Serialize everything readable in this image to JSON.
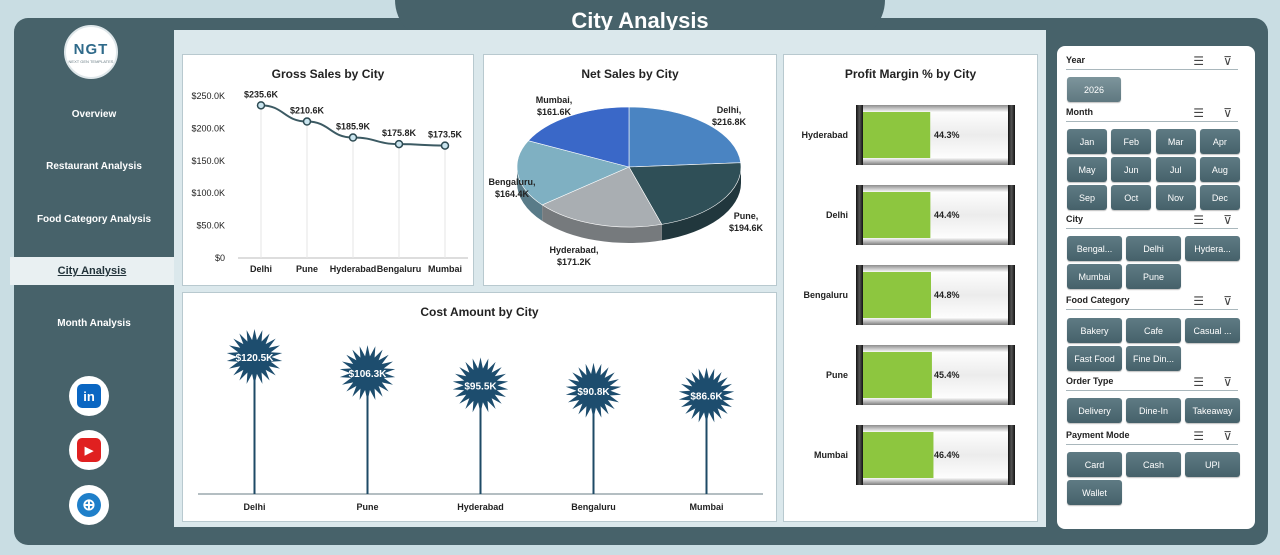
{
  "header": {
    "title": "City Analysis"
  },
  "logo": {
    "text": "NGT",
    "subtext": "NEXT GEN TEMPLATES"
  },
  "nav": {
    "items": [
      {
        "label": "Overview"
      },
      {
        "label": "Restaurant Analysis"
      },
      {
        "label": "Food Category Analysis"
      },
      {
        "label": "City Analysis",
        "active": true
      },
      {
        "label": "Month Analysis"
      }
    ]
  },
  "social": [
    {
      "icon": "linkedin-icon",
      "glyph": "in",
      "color": "#0a66c2"
    },
    {
      "icon": "youtube-icon",
      "glyph": "▶",
      "color": "#e02020"
    },
    {
      "icon": "globe-icon",
      "glyph": "⊕",
      "color": "#1f7fc9"
    }
  ],
  "gross_sales": {
    "title": "Gross Sales by City",
    "y_ticks": [
      "$250.0K",
      "$200.0K",
      "$150.0K",
      "$100.0K",
      "$50.0K",
      "$0"
    ],
    "categories": [
      "Delhi",
      "Pune",
      "Hyderabad",
      "Bengaluru",
      "Mumbai"
    ],
    "labels": [
      "$235.6K",
      "$210.6K",
      "$185.9K",
      "$175.8K",
      "$173.5K"
    ],
    "values": [
      235.6,
      210.6,
      185.9,
      175.8,
      173.5
    ],
    "ylim": [
      0,
      250
    ]
  },
  "net_sales": {
    "title": "Net Sales by City",
    "slices": [
      {
        "name": "Delhi,",
        "value_label": "$216.8K",
        "value": 216.8,
        "color": "#4a84c2"
      },
      {
        "name": "Pune,",
        "value_label": "$194.6K",
        "value": 194.6,
        "color": "#2f4f57"
      },
      {
        "name": "Hyderabad,",
        "value_label": "$171.2K",
        "value": 171.2,
        "color": "#a9aeb2"
      },
      {
        "name": "Bengaluru,",
        "value_label": "$164.4K",
        "value": 164.4,
        "color": "#7fb0c2"
      },
      {
        "name": "Mumbai,",
        "value_label": "$161.6K",
        "value": 161.6,
        "color": "#3a68c8"
      }
    ]
  },
  "cost_amount": {
    "title": "Cost Amount by City",
    "categories": [
      "Delhi",
      "Pune",
      "Hyderabad",
      "Bengaluru",
      "Mumbai"
    ],
    "labels": [
      "$120.5K",
      "$106.3K",
      "$95.5K",
      "$90.8K",
      "$86.6K"
    ],
    "values": [
      120.5,
      106.3,
      95.5,
      90.8,
      86.6
    ]
  },
  "profit_margin": {
    "title": "Profit Margin % by City",
    "rows": [
      {
        "city": "Hyderabad",
        "label": "44.3%",
        "value": 44.3
      },
      {
        "city": "Delhi",
        "label": "44.4%",
        "value": 44.4
      },
      {
        "city": "Bengaluru",
        "label": "44.8%",
        "value": 44.8
      },
      {
        "city": "Pune",
        "label": "45.4%",
        "value": 45.4
      },
      {
        "city": "Mumbai",
        "label": "46.4%",
        "value": 46.4
      }
    ]
  },
  "slicers": {
    "year": {
      "label": "Year",
      "items": [
        "2026"
      ]
    },
    "month": {
      "label": "Month",
      "items": [
        "Jan",
        "Feb",
        "Mar",
        "Apr",
        "May",
        "Jun",
        "Jul",
        "Aug",
        "Sep",
        "Oct",
        "Nov",
        "Dec"
      ]
    },
    "city": {
      "label": "City",
      "items": [
        "Bengal...",
        "Delhi",
        "Hydera...",
        "Mumbai",
        "Pune"
      ]
    },
    "food_category": {
      "label": "Food Category",
      "items": [
        "Bakery",
        "Cafe",
        "Casual ...",
        "Fast Food",
        "Fine Din..."
      ]
    },
    "order_type": {
      "label": "Order Type",
      "items": [
        "Delivery",
        "Dine-In",
        "Takeaway"
      ]
    },
    "payment_mode": {
      "label": "Payment Mode",
      "items": [
        "Card",
        "Cash",
        "UPI",
        "Wallet"
      ]
    }
  }
}
